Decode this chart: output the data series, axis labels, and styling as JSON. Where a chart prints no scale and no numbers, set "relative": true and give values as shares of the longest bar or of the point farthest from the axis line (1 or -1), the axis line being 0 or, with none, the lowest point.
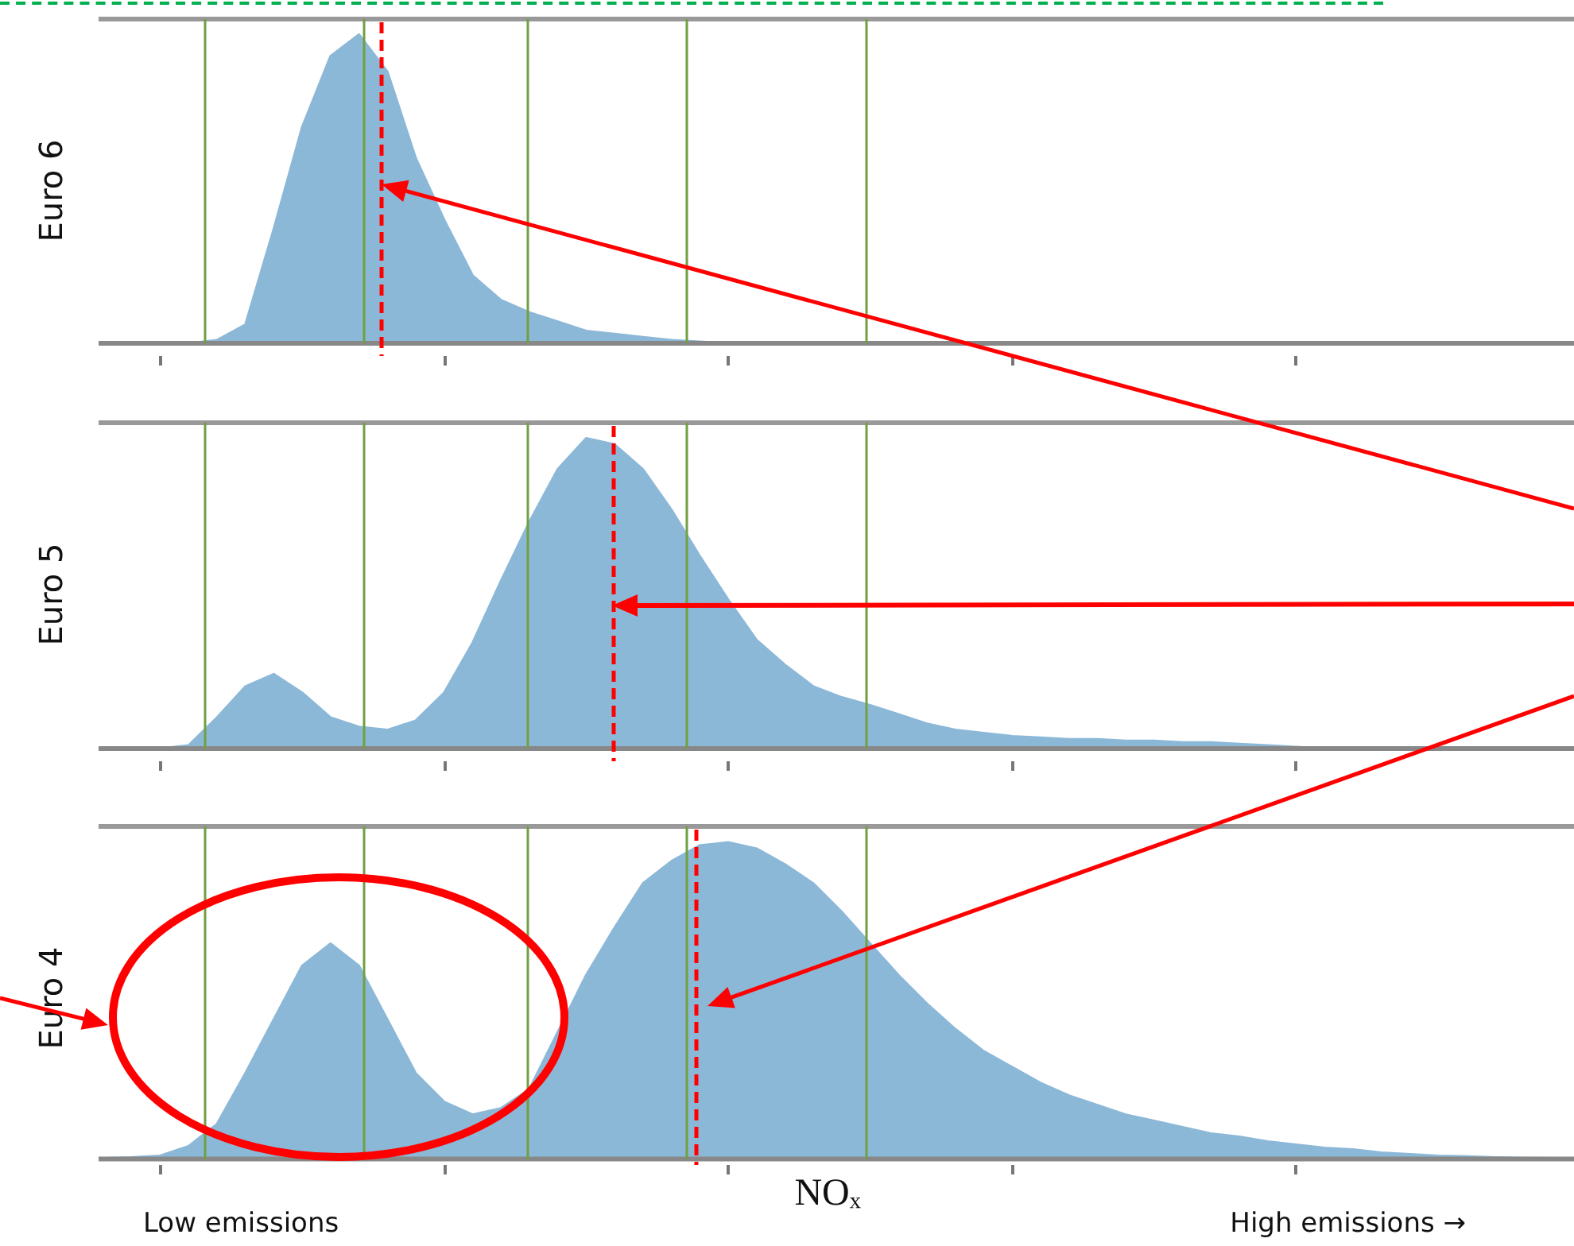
{
  "chart_data": [
    {
      "type": "area",
      "relative": true,
      "ylabel": "Euro 6",
      "grid": "x",
      "categories": [
        null,
        null,
        null,
        null,
        null,
        null,
        null,
        null,
        null,
        null,
        null,
        null,
        null,
        null,
        null,
        null,
        null,
        null,
        null,
        null,
        null,
        null,
        null,
        null,
        null,
        null,
        null,
        null,
        null,
        null,
        null,
        null,
        null,
        null,
        null,
        null,
        null,
        null,
        null,
        null,
        null,
        null,
        null,
        null,
        null,
        null,
        null,
        null,
        null,
        null,
        null,
        null
      ],
      "series": [
        {
          "color": "#8cb8d8",
          "values": [
            0,
            0,
            0,
            0,
            0.01,
            0.06,
            0.37,
            0.7,
            0.93,
            1,
            0.88,
            0.6,
            0.4,
            0.22,
            0.14,
            0.1,
            0.07,
            0.04,
            0.03,
            0.02,
            0.01,
            0.005,
            0,
            0,
            0,
            0,
            0,
            0,
            0,
            0,
            0,
            0,
            0,
            0,
            0,
            0,
            0,
            0,
            0,
            0,
            0,
            0,
            0,
            0,
            0,
            0,
            0,
            0,
            0,
            0,
            0,
            0
          ]
        }
      ]
    },
    {
      "type": "area",
      "relative": true,
      "ylabel": "Euro 5",
      "grid": "x",
      "categories": [
        null,
        null,
        null,
        null,
        null,
        null,
        null,
        null,
        null,
        null,
        null,
        null,
        null,
        null,
        null,
        null,
        null,
        null,
        null,
        null,
        null,
        null,
        null,
        null,
        null,
        null,
        null,
        null,
        null,
        null,
        null,
        null,
        null,
        null,
        null,
        null,
        null,
        null,
        null,
        null,
        null,
        null,
        null,
        null,
        null,
        null,
        null,
        null,
        null,
        null,
        null,
        null
      ],
      "series": [
        {
          "color": "#8cb8d8",
          "values": [
            0,
            0,
            0,
            0.01,
            0.1,
            0.2,
            0.24,
            0.18,
            0.1,
            0.07,
            0.06,
            0.09,
            0.18,
            0.34,
            0.54,
            0.73,
            0.9,
            1,
            0.98,
            0.9,
            0.77,
            0.62,
            0.48,
            0.35,
            0.27,
            0.2,
            0.165,
            0.14,
            0.11,
            0.08,
            0.06,
            0.05,
            0.04,
            0.035,
            0.03,
            0.03,
            0.025,
            0.025,
            0.02,
            0.02,
            0.015,
            0.01,
            0.005,
            0,
            0,
            0,
            0,
            0,
            0,
            0,
            0,
            0
          ]
        }
      ]
    },
    {
      "type": "area",
      "relative": true,
      "ylabel": "Euro 4",
      "xlabel": "NOₓ",
      "grid": "x",
      "categories": [
        null,
        null,
        null,
        null,
        null,
        null,
        null,
        null,
        null,
        null,
        null,
        null,
        null,
        null,
        null,
        null,
        null,
        null,
        null,
        null,
        null,
        null,
        null,
        null,
        null,
        null,
        null,
        null,
        null,
        null,
        null,
        null,
        null,
        null,
        null,
        null,
        null,
        null,
        null,
        null,
        null,
        null,
        null,
        null,
        null,
        null,
        null,
        null,
        null,
        null,
        null,
        null
      ],
      "series": [
        {
          "color": "#8cb8d8",
          "values": [
            0.002,
            0.005,
            0.01,
            0.04,
            0.11,
            0.27,
            0.44,
            0.61,
            0.68,
            0.61,
            0.44,
            0.27,
            0.18,
            0.14,
            0.16,
            0.22,
            0.4,
            0.58,
            0.73,
            0.87,
            0.94,
            0.99,
            1,
            0.98,
            0.93,
            0.87,
            0.78,
            0.68,
            0.58,
            0.49,
            0.41,
            0.34,
            0.29,
            0.24,
            0.2,
            0.17,
            0.14,
            0.12,
            0.1,
            0.08,
            0.07,
            0.055,
            0.045,
            0.035,
            0.03,
            0.02,
            0.015,
            0.01,
            0.008,
            0.005,
            0.003,
            0.002
          ]
        }
      ],
      "annotations": [
        "Low emissions",
        "High emissions →"
      ]
    }
  ]
}
